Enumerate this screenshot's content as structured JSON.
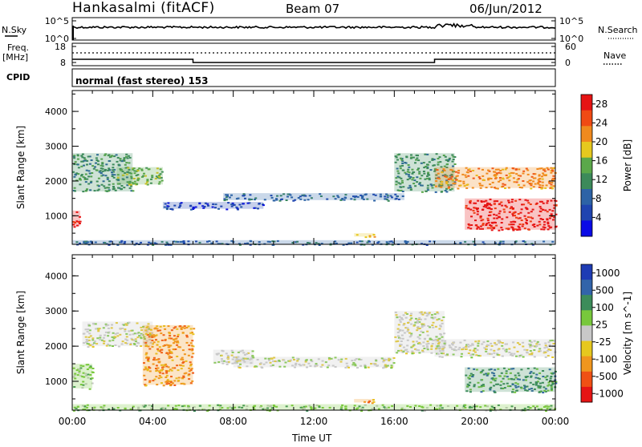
{
  "header": {
    "station": "Hankasalmi (fitACF)",
    "beam": "Beam 07",
    "date": "06/Jun/2012"
  },
  "noise_panel": {
    "left_label": "N.Sky",
    "right_label": "N.Search",
    "left_ticks": [
      "10^5",
      "10^0"
    ],
    "right_ticks": [
      "10^5",
      "10^0"
    ]
  },
  "freq_panel": {
    "left_label_1": "Freq.",
    "left_label_2": "[MHz]",
    "right_label": "Nave",
    "left_ticks": [
      "18",
      "8"
    ],
    "right_ticks": [
      "60",
      "0"
    ]
  },
  "cpid": {
    "label": "CPID",
    "mode": "normal (fast stereo) 153"
  },
  "colors": {
    "power_scale": [
      "#0a0ae6",
      "#1f44b0",
      "#2d63a6",
      "#3c8a5a",
      "#5ba84a",
      "#e6c81e",
      "#f08a1e",
      "#f04a14",
      "#e61414"
    ],
    "velocity_scale": [
      "#e61414",
      "#f05014",
      "#f0961e",
      "#e6c81e",
      "#c8c8c8",
      "#78c83c",
      "#3c8c5a",
      "#3264aa",
      "#1e3cb4"
    ]
  },
  "chart_data": [
    {
      "type": "heatmap",
      "panel": "power",
      "ylabel": "Slant Range [km]",
      "yticks": [
        "1000",
        "2000",
        "3000",
        "4000"
      ],
      "ylim": [
        180,
        4600
      ],
      "xlim": [
        0,
        24
      ],
      "colorbar": {
        "label": "Power [dB]",
        "ticks": [
          "4",
          "8",
          "12",
          "16",
          "20",
          "24",
          "28"
        ],
        "range": [
          0,
          30
        ]
      },
      "regions": [
        {
          "t": [
            0.0,
            0.4
          ],
          "r": [
            700,
            1150
          ],
          "level": 8
        },
        {
          "t": [
            0.0,
            3.0
          ],
          "r": [
            1700,
            2800
          ],
          "level": 3
        },
        {
          "t": [
            2.2,
            4.5
          ],
          "r": [
            1900,
            2400
          ],
          "level": 4
        },
        {
          "t": [
            4.5,
            9.5
          ],
          "r": [
            1200,
            1400
          ],
          "level": 1
        },
        {
          "t": [
            7.5,
            16.5
          ],
          "r": [
            1450,
            1650
          ],
          "level": 2
        },
        {
          "t": [
            14.0,
            15.0
          ],
          "r": [
            400,
            500
          ],
          "level": 5
        },
        {
          "t": [
            16.0,
            19.0
          ],
          "r": [
            1700,
            2800
          ],
          "level": 3
        },
        {
          "t": [
            18.0,
            24.0
          ],
          "r": [
            1800,
            2400
          ],
          "level": 6
        },
        {
          "t": [
            19.5,
            24.0
          ],
          "r": [
            600,
            1500
          ],
          "level": 8
        },
        {
          "t": [
            0.0,
            24.0
          ],
          "r": [
            180,
            300
          ],
          "level": 2
        }
      ]
    },
    {
      "type": "heatmap",
      "panel": "velocity",
      "ylabel": "Slant Range [km]",
      "yticks": [
        "1000",
        "2000",
        "3000",
        "4000"
      ],
      "ylim": [
        180,
        4600
      ],
      "xlim": [
        0,
        24
      ],
      "xticks": [
        "00:00",
        "04:00",
        "08:00",
        "12:00",
        "16:00",
        "20:00",
        "00:00"
      ],
      "xlabel": "Time UT",
      "colorbar": {
        "label": "Velocity [m s^-1]",
        "ticks": [
          "1000",
          "500",
          "100",
          "25",
          "-25",
          "-100",
          "-500",
          "-1000"
        ],
        "range": [
          -1200,
          1200
        ]
      },
      "regions": [
        {
          "t": [
            0.0,
            1.0
          ],
          "r": [
            800,
            1500
          ],
          "level": 5
        },
        {
          "t": [
            0.5,
            4.0
          ],
          "r": [
            2000,
            2700
          ],
          "level": 4
        },
        {
          "t": [
            3.5,
            6.0
          ],
          "r": [
            900,
            2600
          ],
          "level": 2
        },
        {
          "t": [
            7.0,
            9.0
          ],
          "r": [
            1500,
            1900
          ],
          "level": 4
        },
        {
          "t": [
            8.0,
            16.0
          ],
          "r": [
            1400,
            1700
          ],
          "level": 4
        },
        {
          "t": [
            14.0,
            15.0
          ],
          "r": [
            400,
            500
          ],
          "level": 2
        },
        {
          "t": [
            16.0,
            18.5
          ],
          "r": [
            1800,
            3000
          ],
          "level": 4
        },
        {
          "t": [
            18.0,
            24.0
          ],
          "r": [
            1700,
            2200
          ],
          "level": 4
        },
        {
          "t": [
            19.5,
            24.0
          ],
          "r": [
            700,
            1400
          ],
          "level": 6
        },
        {
          "t": [
            0.0,
            24.0
          ],
          "r": [
            180,
            350
          ],
          "level": 5
        }
      ]
    }
  ]
}
